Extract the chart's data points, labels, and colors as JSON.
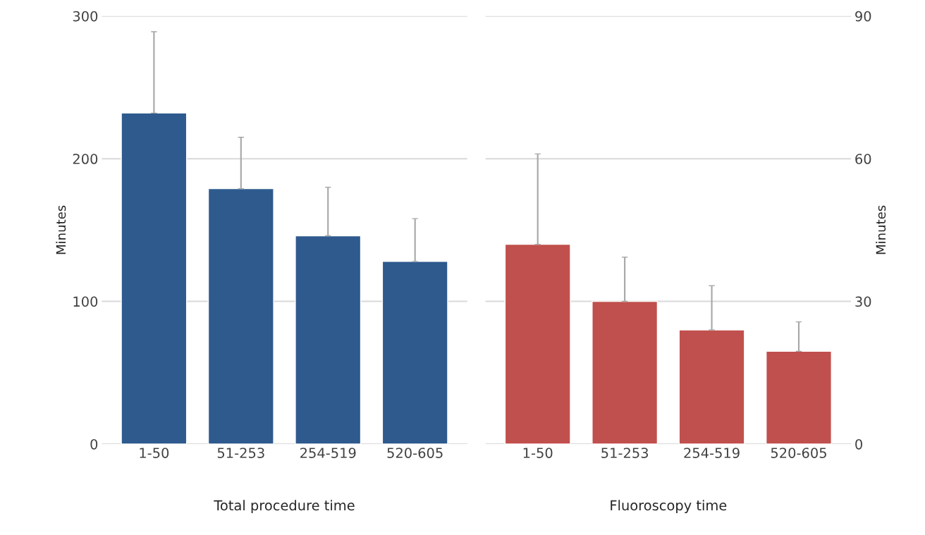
{
  "chart_data": [
    {
      "type": "bar",
      "xlabel": "Total procedure time",
      "ylabel": "Minutes",
      "categories": [
        "1-50",
        "51-253",
        "254-519",
        "520-605"
      ],
      "ylim": [
        0,
        300
      ],
      "yticks": [
        0,
        100,
        200,
        300
      ],
      "grid": "y",
      "series": [
        {
          "color": "#2e5a8e",
          "values": [
            232,
            179,
            146,
            128
          ],
          "errors": [
            [
              232,
              289
            ],
            [
              179,
              215
            ],
            [
              146,
              180
            ],
            [
              128,
              158
            ]
          ]
        }
      ]
    },
    {
      "type": "bar",
      "xlabel": "Fluoroscopy time",
      "y2label": "Minutes",
      "categories": [
        "1-50",
        "51-253",
        "254-519",
        "520-605"
      ],
      "y2lim": [
        0,
        90
      ],
      "y2ticks": [
        0,
        30,
        60,
        90
      ],
      "grid": "y",
      "series": [
        {
          "color": "#c0504d",
          "values": [
            42,
            30,
            24,
            19.5
          ],
          "errors": [
            [
              42,
              61
            ],
            [
              30,
              39.3
            ],
            [
              24,
              33.3
            ],
            [
              19.5,
              25.7
            ]
          ],
          "axis": "y2"
        }
      ]
    }
  ]
}
